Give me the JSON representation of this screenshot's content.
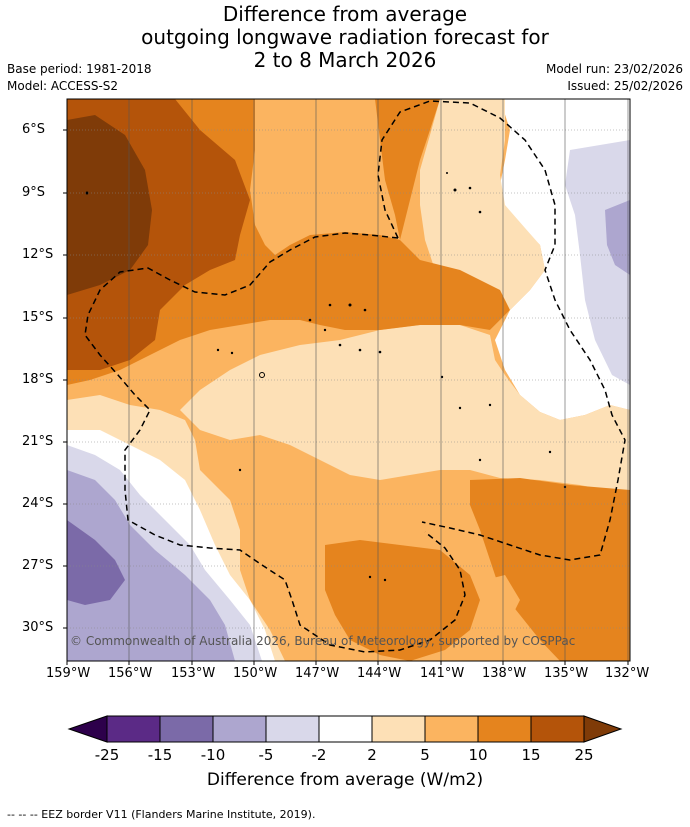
{
  "title": {
    "line1": "Difference from average",
    "line2": "outgoing longwave radiation forecast for",
    "line3": "2 to 8 March 2026"
  },
  "meta": {
    "base_period": "Base period: 1981-2018",
    "model": "Model: ACCESS-S2",
    "model_run": "Model run: 23/02/2026",
    "issued": "Issued: 25/02/2026"
  },
  "axes": {
    "lat_labels": [
      "6°S",
      "9°S",
      "12°S",
      "15°S",
      "18°S",
      "21°S",
      "24°S",
      "27°S",
      "30°S"
    ],
    "lon_labels": [
      "159°W",
      "156°W",
      "153°W",
      "150°W",
      "147°W",
      "144°W",
      "141°W",
      "138°W",
      "135°W",
      "132°W"
    ]
  },
  "map": {
    "lat_range": [
      -31.5,
      -4.5
    ],
    "lon_range": [
      -159,
      -131.9
    ]
  },
  "credit": "© Commonwealth of Australia 2026, Bureau of Meteorology, supported by COSPPac",
  "colorbar": {
    "ticks": [
      "-25",
      "-15",
      "-10",
      "-5",
      "-2",
      "2",
      "5",
      "10",
      "15",
      "25"
    ],
    "colors": [
      "#5b2a86",
      "#7b6aa8",
      "#ada6cf",
      "#d9d8ea",
      "#ffffff",
      "#fde0b6",
      "#fbb460",
      "#e5841e",
      "#b4540a"
    ],
    "extend_low_color": "#2d004b",
    "extend_high_color": "#7f3b08",
    "title": "Difference from average (W/m2)"
  },
  "eez_legend": "--  --  -- EEZ border V11 (Flanders Marine Institute, 2019)."
}
